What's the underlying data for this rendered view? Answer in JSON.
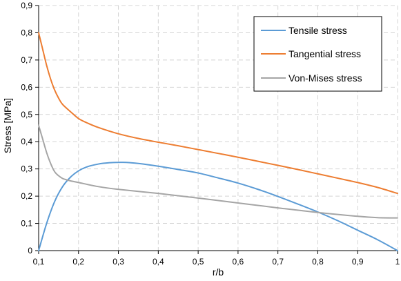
{
  "chart_data": {
    "type": "line",
    "title": "",
    "xlabel": "r/b",
    "ylabel": "Stress [MPa]",
    "xlim": [
      0.1,
      1.0
    ],
    "ylim": [
      0,
      0.9
    ],
    "x_ticks": [
      "0,1",
      "0,2",
      "0,3",
      "0,4",
      "0,5",
      "0,6",
      "0,7",
      "0,8",
      "0,9",
      "1"
    ],
    "y_ticks": [
      "0",
      "0,1",
      "0,2",
      "0,3",
      "0,4",
      "0,5",
      "0,6",
      "0,7",
      "0,8",
      "0,9"
    ],
    "grid": true,
    "legend_position": "top-right",
    "series": [
      {
        "name": "Tensile stress",
        "color": "#5B9BD5",
        "x": [
          0.1,
          0.12,
          0.14,
          0.16,
          0.18,
          0.2,
          0.22,
          0.25,
          0.28,
          0.3,
          0.32,
          0.35,
          0.4,
          0.45,
          0.5,
          0.55,
          0.6,
          0.65,
          0.7,
          0.75,
          0.8,
          0.85,
          0.9,
          0.95,
          1.0
        ],
        "y": [
          0.0,
          0.1,
          0.18,
          0.235,
          0.27,
          0.293,
          0.307,
          0.318,
          0.323,
          0.324,
          0.324,
          0.32,
          0.31,
          0.298,
          0.285,
          0.267,
          0.248,
          0.225,
          0.199,
          0.171,
          0.142,
          0.11,
          0.075,
          0.04,
          0.0
        ]
      },
      {
        "name": "Tangential stress",
        "color": "#ED7D31",
        "x": [
          0.1,
          0.11,
          0.12,
          0.13,
          0.14,
          0.15,
          0.16,
          0.18,
          0.2,
          0.22,
          0.25,
          0.3,
          0.35,
          0.4,
          0.45,
          0.5,
          0.55,
          0.6,
          0.65,
          0.7,
          0.75,
          0.8,
          0.85,
          0.9,
          0.95,
          1.0
        ],
        "y": [
          0.8,
          0.74,
          0.68,
          0.63,
          0.59,
          0.56,
          0.537,
          0.51,
          0.485,
          0.47,
          0.452,
          0.429,
          0.412,
          0.398,
          0.385,
          0.371,
          0.357,
          0.343,
          0.328,
          0.313,
          0.298,
          0.282,
          0.266,
          0.25,
          0.232,
          0.21
        ]
      },
      {
        "name": "Von-Mises stress",
        "color": "#A5A5A5",
        "x": [
          0.1,
          0.11,
          0.12,
          0.13,
          0.14,
          0.15,
          0.16,
          0.17,
          0.18,
          0.2,
          0.25,
          0.3,
          0.4,
          0.5,
          0.6,
          0.7,
          0.8,
          0.9,
          0.95,
          1.0
        ],
        "y": [
          0.46,
          0.41,
          0.36,
          0.32,
          0.29,
          0.275,
          0.265,
          0.26,
          0.256,
          0.25,
          0.235,
          0.225,
          0.21,
          0.193,
          0.175,
          0.157,
          0.14,
          0.126,
          0.121,
          0.12
        ]
      }
    ]
  }
}
